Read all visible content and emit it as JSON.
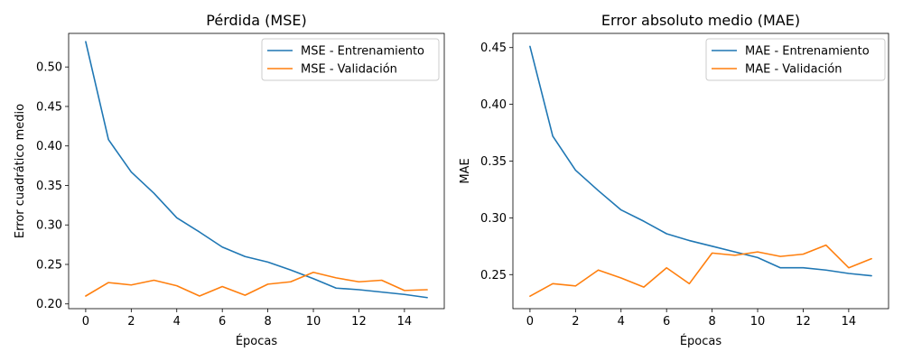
{
  "colors": {
    "train": "#1f77b4",
    "val": "#ff7f0e"
  },
  "chart_data": [
    {
      "type": "line",
      "title": "Pérdida (MSE)",
      "xlabel": "Épocas",
      "ylabel": "Error cuadrático medio",
      "xlim": [
        -0.75,
        15.75
      ],
      "ylim": [
        0.194,
        0.5425
      ],
      "xticks": [
        0,
        2,
        4,
        6,
        8,
        10,
        12,
        14
      ],
      "yticks": [
        0.2,
        0.25,
        0.3,
        0.35,
        0.4,
        0.45,
        0.5
      ],
      "ytick_labels": [
        "0.20",
        "0.25",
        "0.30",
        "0.35",
        "0.40",
        "0.45",
        "0.50"
      ],
      "legend": "top-right",
      "grid": false,
      "x": [
        0,
        1,
        2,
        3,
        4,
        5,
        6,
        7,
        8,
        9,
        10,
        11,
        12,
        13,
        14,
        15
      ],
      "series": [
        {
          "name": "MSE - Entrenamiento",
          "color": "#1f77b4",
          "values": [
            0.532,
            0.408,
            0.367,
            0.34,
            0.309,
            0.291,
            0.272,
            0.26,
            0.253,
            0.243,
            0.232,
            0.22,
            0.218,
            0.215,
            0.212,
            0.208
          ]
        },
        {
          "name": "MSE - Validación",
          "color": "#ff7f0e",
          "values": [
            0.21,
            0.227,
            0.224,
            0.23,
            0.223,
            0.21,
            0.222,
            0.211,
            0.225,
            0.228,
            0.24,
            0.233,
            0.228,
            0.23,
            0.217,
            0.218
          ]
        }
      ]
    },
    {
      "type": "line",
      "title": "Error absoluto medio (MAE)",
      "xlabel": "Épocas",
      "ylabel": "MAE",
      "xlim": [
        -0.75,
        15.75
      ],
      "ylim": [
        0.22,
        0.4625
      ],
      "xticks": [
        0,
        2,
        4,
        6,
        8,
        10,
        12,
        14
      ],
      "yticks": [
        0.25,
        0.3,
        0.35,
        0.4,
        0.45
      ],
      "ytick_labels": [
        "0.25",
        "0.30",
        "0.35",
        "0.40",
        "0.45"
      ],
      "legend": "top-right",
      "grid": false,
      "x": [
        0,
        1,
        2,
        3,
        4,
        5,
        6,
        7,
        8,
        9,
        10,
        11,
        12,
        13,
        14,
        15
      ],
      "series": [
        {
          "name": "MAE - Entrenamiento",
          "color": "#1f77b4",
          "values": [
            0.451,
            0.372,
            0.342,
            0.324,
            0.307,
            0.297,
            0.286,
            0.28,
            0.275,
            0.27,
            0.265,
            0.256,
            0.256,
            0.254,
            0.251,
            0.249
          ]
        },
        {
          "name": "MAE - Validación",
          "color": "#ff7f0e",
          "values": [
            0.231,
            0.242,
            0.24,
            0.254,
            0.247,
            0.239,
            0.256,
            0.242,
            0.269,
            0.267,
            0.27,
            0.266,
            0.268,
            0.276,
            0.256,
            0.264
          ]
        }
      ]
    }
  ]
}
